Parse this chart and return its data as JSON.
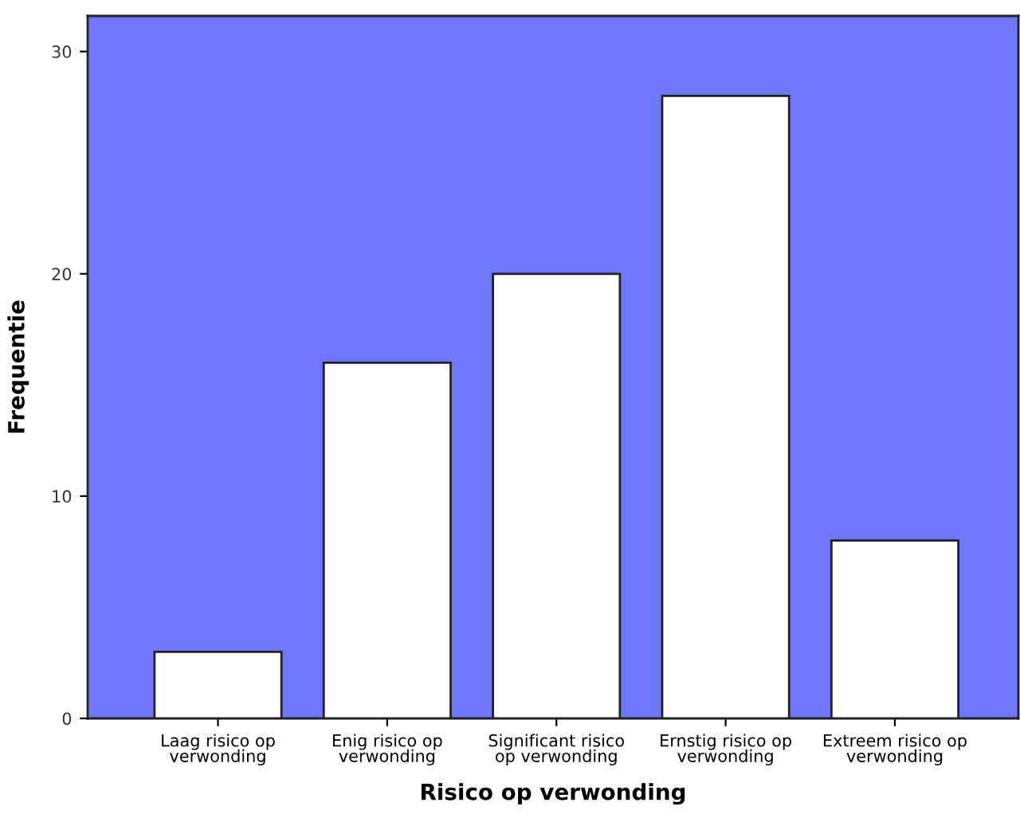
{
  "chart_data": {
    "type": "bar",
    "xlabel": "Risico op verwonding",
    "ylabel": "Frequentie",
    "categories": [
      "Laag risico op\nverwonding",
      "Enig risico op\nverwonding",
      "Significant risico\nop verwonding",
      "Ernstig risico op\nverwonding",
      "Extreem risico op\nverwonding"
    ],
    "values": [
      3,
      16,
      20,
      28,
      8
    ],
    "color": "#ffffff",
    "ylim": [
      0,
      31.6
    ],
    "yticks": [
      0,
      10,
      20,
      30
    ],
    "grid": false
  }
}
